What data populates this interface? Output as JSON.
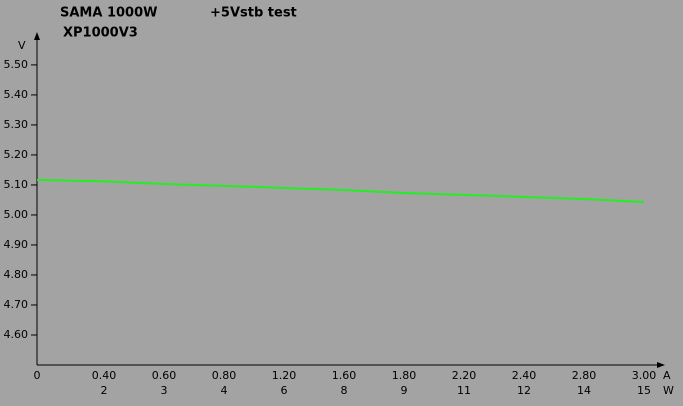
{
  "chart_data": {
    "type": "line",
    "title": "SAMA 1000W",
    "subtitle": "+5Vstb test",
    "model": "XP1000V3",
    "y_unit": "V",
    "x_unit": "A",
    "x2_unit": "W",
    "categories": [
      "0",
      "0.40",
      "0.60",
      "0.80",
      "1.20",
      "1.60",
      "1.80",
      "2.20",
      "2.40",
      "2.80",
      "3.00"
    ],
    "x2_labels": [
      null,
      "2",
      "3",
      "4",
      "6",
      "8",
      "9",
      "11",
      "12",
      "14",
      "15"
    ],
    "series": [
      {
        "name": "+5Vstb",
        "color": "#22ee22",
        "values": [
          5.117,
          5.112,
          5.103,
          5.097,
          5.09,
          5.083,
          5.073,
          5.067,
          5.06,
          5.053,
          5.043
        ]
      }
    ],
    "ylim": [
      4.5,
      5.583
    ],
    "yticks": [
      {
        "value": 4.6,
        "label": "4.60"
      },
      {
        "value": 4.7,
        "label": "4.70"
      },
      {
        "value": 4.8,
        "label": "4.80"
      },
      {
        "value": 4.9,
        "label": "4.90"
      },
      {
        "value": 5.0,
        "label": "5.00"
      },
      {
        "value": 5.1,
        "label": "5.10"
      },
      {
        "value": 5.2,
        "label": "5.20"
      },
      {
        "value": 5.3,
        "label": "5.30"
      },
      {
        "value": 5.4,
        "label": "5.40"
      },
      {
        "value": 5.5,
        "label": "5.50"
      }
    ],
    "grid": false
  }
}
